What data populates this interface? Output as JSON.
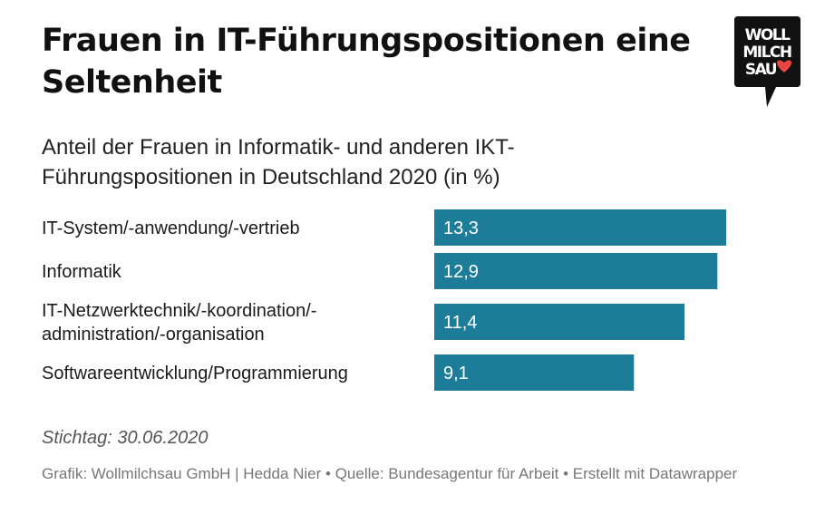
{
  "title": "Frauen in IT-Führungspositionen eine Seltenheit",
  "subtitle": "Anteil der Frauen in Informatik- und anderen IKT-Führungspositionen in Deutschland 2020 (in %)",
  "logo": {
    "lines": [
      "WOLL",
      "MILCH",
      "SAU"
    ],
    "heart_color": "#e8463f",
    "bg_color": "#111111"
  },
  "chart_data": {
    "type": "bar",
    "orientation": "horizontal",
    "categories": [
      [
        "IT-System/-anwendung/-vertrieb"
      ],
      [
        "Informatik"
      ],
      [
        "IT-Netzwerktechnik/-koordination/-",
        "administration/-organisation"
      ],
      [
        "Softwareentwicklung/Programmierung"
      ]
    ],
    "values": [
      13.3,
      12.9,
      11.4,
      9.1
    ],
    "value_labels": [
      "13,3",
      "12,9",
      "11,4",
      "9,1"
    ],
    "bar_color": "#1d7d99",
    "xlim": [
      0,
      13.3
    ]
  },
  "stichtag": "Stichtag: 30.06.2020",
  "footer": "Grafik: Wollmilchsau GmbH | Hedda Nier • Quelle: Bundesagentur für Arbeit • Erstellt mit Datawrapper"
}
